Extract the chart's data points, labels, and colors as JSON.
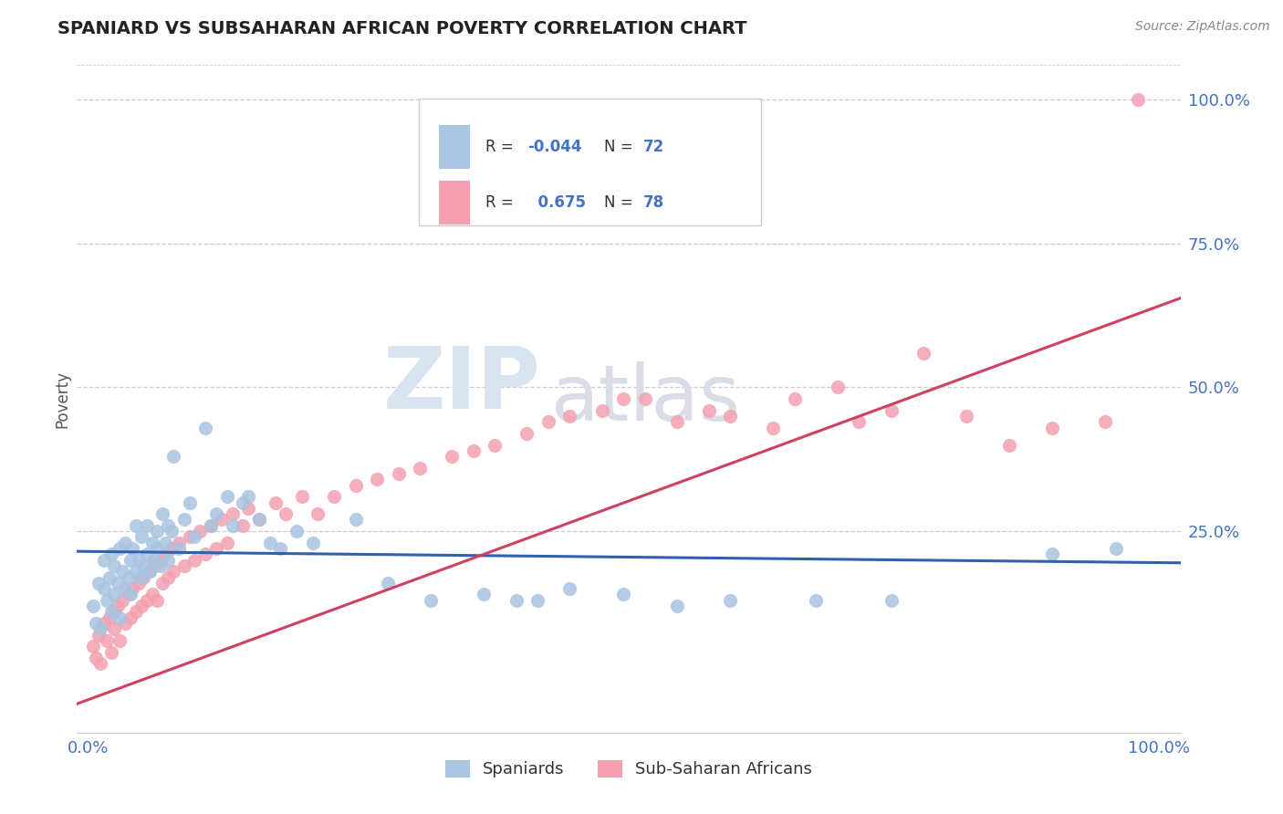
{
  "title": "SPANIARD VS SUBSAHARAN AFRICAN POVERTY CORRELATION CHART",
  "source_text": "Source: ZipAtlas.com",
  "ylabel": "Poverty",
  "watermark_text": "ZIP",
  "watermark_text2": "atlas",
  "legend_blue_label": "Spaniards",
  "legend_pink_label": "Sub-Saharan Africans",
  "legend_R_blue": "-0.044",
  "legend_N_blue": "72",
  "legend_R_pink": "0.675",
  "legend_N_pink": "78",
  "blue_scatter_color": "#a8c4e0",
  "pink_scatter_color": "#f4a0b0",
  "blue_line_color": "#3060b0",
  "pink_line_color": "#d04060",
  "title_color": "#222222",
  "axis_label_color": "#4472c4",
  "grid_color": "#cccccc",
  "background_color": "#ffffff",
  "blue_line_y0": 0.215,
  "blue_line_y1": 0.195,
  "pink_line_y0": -0.05,
  "pink_line_y1": 0.655,
  "xlim": [
    -0.01,
    1.02
  ],
  "ylim": [
    -0.1,
    1.06
  ],
  "yticks": [
    0.0,
    0.25,
    0.5,
    0.75,
    1.0
  ],
  "xticks": [
    0.0,
    1.0
  ],
  "spaniards_x": [
    0.005,
    0.008,
    0.01,
    0.012,
    0.015,
    0.015,
    0.018,
    0.02,
    0.022,
    0.022,
    0.025,
    0.025,
    0.028,
    0.03,
    0.03,
    0.032,
    0.035,
    0.035,
    0.038,
    0.04,
    0.04,
    0.042,
    0.045,
    0.045,
    0.048,
    0.05,
    0.05,
    0.052,
    0.055,
    0.055,
    0.058,
    0.06,
    0.062,
    0.065,
    0.065,
    0.068,
    0.07,
    0.072,
    0.075,
    0.075,
    0.078,
    0.08,
    0.085,
    0.09,
    0.095,
    0.1,
    0.11,
    0.115,
    0.12,
    0.13,
    0.135,
    0.145,
    0.15,
    0.16,
    0.17,
    0.18,
    0.195,
    0.21,
    0.25,
    0.28,
    0.32,
    0.37,
    0.4,
    0.42,
    0.45,
    0.5,
    0.55,
    0.6,
    0.68,
    0.75,
    0.9,
    0.96
  ],
  "spaniards_y": [
    0.12,
    0.09,
    0.16,
    0.08,
    0.15,
    0.2,
    0.13,
    0.17,
    0.11,
    0.21,
    0.14,
    0.19,
    0.16,
    0.1,
    0.22,
    0.18,
    0.15,
    0.23,
    0.17,
    0.2,
    0.14,
    0.22,
    0.18,
    0.26,
    0.2,
    0.17,
    0.24,
    0.19,
    0.21,
    0.26,
    0.18,
    0.23,
    0.2,
    0.25,
    0.22,
    0.19,
    0.28,
    0.23,
    0.26,
    0.2,
    0.25,
    0.38,
    0.22,
    0.27,
    0.3,
    0.24,
    0.43,
    0.26,
    0.28,
    0.31,
    0.26,
    0.3,
    0.31,
    0.27,
    0.23,
    0.22,
    0.25,
    0.23,
    0.27,
    0.16,
    0.13,
    0.14,
    0.13,
    0.13,
    0.15,
    0.14,
    0.12,
    0.13,
    0.13,
    0.13,
    0.21,
    0.22
  ],
  "subsaharan_x": [
    0.005,
    0.008,
    0.01,
    0.012,
    0.015,
    0.018,
    0.02,
    0.022,
    0.025,
    0.025,
    0.028,
    0.03,
    0.032,
    0.035,
    0.038,
    0.04,
    0.042,
    0.045,
    0.048,
    0.05,
    0.052,
    0.055,
    0.058,
    0.06,
    0.062,
    0.065,
    0.068,
    0.07,
    0.072,
    0.075,
    0.078,
    0.08,
    0.085,
    0.09,
    0.095,
    0.1,
    0.105,
    0.11,
    0.115,
    0.12,
    0.125,
    0.13,
    0.135,
    0.145,
    0.15,
    0.16,
    0.175,
    0.185,
    0.2,
    0.215,
    0.23,
    0.25,
    0.27,
    0.29,
    0.31,
    0.34,
    0.36,
    0.38,
    0.41,
    0.43,
    0.45,
    0.48,
    0.5,
    0.52,
    0.55,
    0.58,
    0.6,
    0.64,
    0.66,
    0.7,
    0.72,
    0.75,
    0.78,
    0.82,
    0.86,
    0.9,
    0.95,
    0.98
  ],
  "subsaharan_y": [
    0.05,
    0.03,
    0.07,
    0.02,
    0.09,
    0.06,
    0.1,
    0.04,
    0.11,
    0.08,
    0.12,
    0.06,
    0.13,
    0.09,
    0.14,
    0.1,
    0.15,
    0.11,
    0.16,
    0.12,
    0.17,
    0.13,
    0.18,
    0.14,
    0.19,
    0.13,
    0.2,
    0.16,
    0.21,
    0.17,
    0.22,
    0.18,
    0.23,
    0.19,
    0.24,
    0.2,
    0.25,
    0.21,
    0.26,
    0.22,
    0.27,
    0.23,
    0.28,
    0.26,
    0.29,
    0.27,
    0.3,
    0.28,
    0.31,
    0.28,
    0.31,
    0.33,
    0.34,
    0.35,
    0.36,
    0.38,
    0.39,
    0.4,
    0.42,
    0.44,
    0.45,
    0.46,
    0.48,
    0.48,
    0.44,
    0.46,
    0.45,
    0.43,
    0.48,
    0.5,
    0.44,
    0.46,
    0.56,
    0.45,
    0.4,
    0.43,
    0.44,
    1.0
  ]
}
